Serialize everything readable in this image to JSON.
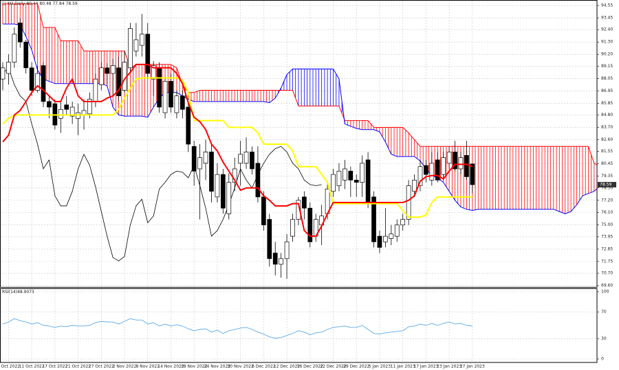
{
  "chart_data": [
    {
      "type": "candlestick",
      "title": "KO,Daily 80.44 80.48 77.84 78.59",
      "categories": [
        null,
        "6 Oct 2022",
        null,
        null,
        null,
        "11 Oct 2022",
        null,
        null,
        null,
        "17 Oct 2022",
        null,
        null,
        null,
        "21 Oct 2022",
        null,
        null,
        null,
        "27 Oct 2022",
        null,
        null,
        null,
        "2 Nov 2022",
        null,
        null,
        null,
        "8 Nov 2022",
        null,
        null,
        null,
        "14 Nov 2022",
        null,
        null,
        null,
        "18 Nov 2022",
        null,
        null,
        null,
        "24 Nov 2022",
        null,
        null,
        null,
        "30 Nov 2022",
        null,
        null,
        null,
        "6 Dec 2022",
        null,
        null,
        null,
        "12 Dec 2022",
        null,
        null,
        null,
        "16 Dec 2022",
        null,
        null,
        null,
        "22 Dec 2022",
        null,
        null,
        null,
        "29 Dec 2022",
        null,
        null,
        null,
        "5 Jan 2023",
        null,
        null,
        null,
        "11 Jan 2023",
        null,
        null,
        null,
        "17 Jan 2023",
        null,
        null,
        null,
        "23 Jan 2023",
        null,
        null,
        null,
        "27 Jan 2023",
        null,
        null,
        null,
        null,
        null,
        null,
        null,
        null,
        null,
        null,
        null,
        null,
        null,
        null,
        null,
        null,
        null,
        null,
        null,
        null,
        null,
        null
      ],
      "open": [
        88,
        88.5,
        89.5,
        93,
        91.3,
        89,
        87,
        89.2,
        86,
        85.8,
        84.5,
        85.7,
        84.7,
        84.5,
        84.8,
        84.9,
        86,
        87.5,
        89,
        88.5,
        89,
        87,
        89,
        90.5,
        91,
        92,
        88,
        89,
        85,
        87.8,
        85,
        86.5,
        85.5,
        82,
        80,
        80.5,
        81.5,
        77.5,
        79.5,
        76,
        78.8,
        80.5,
        80.5,
        81.5,
        80.5,
        77.5,
        75.5,
        72.5,
        71.5,
        72,
        74,
        75.5,
        77.5,
        76.5,
        74,
        75,
        76,
        78,
        78.5,
        79,
        79.8,
        79,
        78.8,
        80.8,
        77.5,
        74,
        73.5,
        73.8,
        74,
        75,
        75.5,
        78,
        78.5,
        80.3,
        79,
        80.8,
        79.5,
        80.5,
        81.5,
        80,
        81.2,
        80.44,
        null,
        null,
        null,
        null,
        null,
        null,
        null,
        null,
        null,
        null,
        null,
        null,
        null,
        null,
        null,
        null,
        null,
        null,
        null,
        null,
        null,
        null
      ],
      "high": [
        89.5,
        90.2,
        92.6,
        93.4,
        91.5,
        89.5,
        89.2,
        89.5,
        86.5,
        86.2,
        86,
        86.5,
        86,
        85.8,
        86.2,
        86.8,
        88.5,
        89.5,
        89.4,
        89.8,
        90,
        90.5,
        93,
        93,
        93.8,
        93,
        89.6,
        89.5,
        88.2,
        88.5,
        87,
        87,
        86,
        82.5,
        82.2,
        82.6,
        82.3,
        80.5,
        80,
        79.6,
        81,
        82.5,
        82.8,
        82,
        82,
        78,
        76,
        73.5,
        72.5,
        74.2,
        76,
        77.5,
        78,
        77,
        76,
        76.8,
        78.8,
        80,
        80.5,
        80.8,
        80.2,
        79.5,
        81.2,
        81.5,
        78,
        74.5,
        76.5,
        75,
        75.5,
        76,
        79,
        79.5,
        80.8,
        80.8,
        81.5,
        81.5,
        81.5,
        82,
        82.5,
        81.5,
        82.5,
        80.48,
        null,
        null,
        null,
        null,
        null,
        null,
        null,
        null,
        null,
        null,
        null,
        null,
        null,
        null,
        null,
        null,
        null,
        null,
        null,
        null,
        null,
        null
      ],
      "low": [
        87,
        87.5,
        89,
        90.8,
        88.5,
        86.5,
        86.8,
        85.5,
        84.5,
        83.5,
        83.2,
        84.8,
        84,
        83,
        83.5,
        84.5,
        85.5,
        87,
        87.5,
        86.5,
        86,
        86.8,
        88.5,
        90,
        90,
        88,
        86.5,
        85,
        84.5,
        85,
        84.5,
        84.5,
        81.5,
        78.5,
        75.5,
        79,
        77,
        77,
        76,
        75.5,
        78,
        78.5,
        80,
        79.5,
        77,
        74.5,
        71.3,
        70.5,
        70.3,
        70.2,
        73.5,
        75,
        75.5,
        73,
        73.5,
        73.2,
        75.5,
        77.5,
        78,
        78.2,
        77.5,
        77.5,
        77.5,
        76.5,
        73,
        72.5,
        73,
        73.2,
        73.5,
        74.5,
        75,
        77.5,
        78,
        78.8,
        78.5,
        78.8,
        79,
        80,
        79.8,
        79.5,
        79,
        77.84,
        null,
        null,
        null,
        null,
        null,
        null,
        null,
        null,
        null,
        null,
        null,
        null,
        null,
        null,
        null,
        null,
        null,
        null,
        null,
        null,
        null,
        null
      ],
      "close": [
        89,
        89.5,
        92,
        91.3,
        89,
        87,
        88.5,
        86,
        85.5,
        83.9,
        85.3,
        85.3,
        85.5,
        85,
        85.2,
        86.2,
        88,
        89,
        88.5,
        89.2,
        86.5,
        89.5,
        92.5,
        91.5,
        92,
        88.5,
        89.2,
        85.5,
        87.8,
        85.5,
        86.5,
        85.3,
        82.2,
        79.8,
        81,
        81.5,
        78,
        79.5,
        76.5,
        78.8,
        80,
        81.3,
        81.5,
        80,
        77.5,
        75,
        72,
        71.5,
        72,
        73.5,
        75.5,
        77.2,
        76.5,
        73.5,
        75.5,
        75.8,
        78.2,
        79.5,
        79.8,
        80,
        79,
        78.8,
        80.5,
        77,
        73.5,
        73,
        74,
        74.2,
        75,
        75.5,
        78.5,
        79,
        80.2,
        79.5,
        80.5,
        79,
        81,
        81.5,
        80,
        81,
        79.3,
        78.59,
        null,
        null,
        null,
        null,
        null,
        null,
        null,
        null,
        null,
        null,
        null,
        null,
        null,
        null,
        null,
        null,
        null,
        null,
        null,
        null,
        null,
        null
      ],
      "up_color": "#ffffff",
      "down_color": "#000000",
      "span_a": {
        "color": "#ff0000",
        "values": [
          94.7,
          94.7,
          94.7,
          94.7,
          94.7,
          94.7,
          94.7,
          92.6,
          92.6,
          92.6,
          91.4,
          91.4,
          91.4,
          91.4,
          90.5,
          90.5,
          90.5,
          90.5,
          90.5,
          90.5,
          90.5,
          90.5,
          89,
          89.3,
          89.3,
          89.3,
          89.3,
          89.3,
          89.3,
          89.3,
          89,
          87.5,
          86.8,
          86.8,
          87,
          87,
          87,
          87,
          87,
          87,
          87,
          87,
          87,
          87,
          87,
          87,
          87,
          87,
          87,
          87,
          87,
          85.6,
          85.6,
          85.6,
          85.6,
          85.6,
          85.6,
          85.6,
          85.6,
          84.3,
          84.3,
          84.3,
          84.3,
          84.3,
          83.7,
          83.7,
          83.7,
          83.7,
          83.7,
          83.7,
          83.2,
          82.6,
          82,
          82,
          82,
          82,
          82,
          82,
          82,
          82,
          82,
          82,
          82,
          82,
          82,
          82,
          82,
          82,
          82,
          82,
          82,
          82,
          82,
          82,
          82,
          82,
          82,
          82,
          82,
          82,
          82,
          82,
          80.5,
          80.2
        ]
      },
      "span_b": {
        "color": "#0000ff",
        "values": [
          92.9,
          92.9,
          92.9,
          92.8,
          91.8,
          90.6,
          88.8,
          88,
          87.8,
          87.6,
          87.6,
          87.6,
          87.6,
          87.6,
          87.6,
          87.6,
          87.6,
          87.6,
          87.4,
          85.5,
          84.8,
          84.7,
          84.7,
          84.7,
          84.7,
          84.6,
          85.5,
          86.3,
          86.8,
          86.8,
          86.8,
          86.5,
          86.2,
          86,
          86,
          86,
          86,
          86,
          86,
          86,
          86,
          86,
          86,
          86,
          86,
          86,
          85.9,
          86.3,
          87.2,
          88.4,
          88.9,
          88.9,
          88.9,
          88.9,
          88.9,
          88.9,
          88.9,
          88.9,
          88,
          84,
          83.8,
          83.6,
          83.5,
          83.5,
          83.5,
          83.3,
          82.4,
          81.3,
          81.1,
          81.1,
          81.1,
          81.1,
          80.7,
          80,
          79.4,
          79.2,
          78.8,
          78,
          77.2,
          76.6,
          76.4,
          76.3,
          76.4,
          76.4,
          76.4,
          76.4,
          76.4,
          76.4,
          76.4,
          76.4,
          76.4,
          76.4,
          76.4,
          76.4,
          76.4,
          76.4,
          76.2,
          76,
          76.2,
          76.8,
          77.6,
          77.8,
          78,
          78.5
        ]
      },
      "chikou": {
        "color": "#000000",
        "values": [
          88.5,
          89,
          87.5,
          86.5,
          86,
          84,
          82.2,
          80,
          80.8,
          77.6,
          76.7,
          76.7,
          78,
          80,
          81.3,
          80.3,
          78.4,
          76.2,
          74,
          72.1,
          71.8,
          72.2,
          75,
          76.7,
          77.3,
          75.2,
          75.8,
          78.2,
          78.8,
          79.5,
          79.8,
          79.7,
          79.2,
          80.3,
          78.5,
          76.5,
          74,
          74.5,
          75.5,
          76.8,
          78.3,
          80,
          79,
          78.3,
          79.5,
          80.5,
          81.3,
          81.8,
          82,
          81.5,
          80.5,
          80,
          79,
          78.6,
          78.5,
          78.59,
          null,
          null,
          null,
          null,
          null,
          null,
          null,
          null,
          null,
          null,
          null,
          null,
          null,
          null,
          null,
          null,
          null,
          null,
          null,
          null,
          null,
          null,
          null,
          null,
          null,
          null,
          null,
          null,
          null,
          null,
          null,
          null,
          null,
          null,
          null,
          null,
          null,
          null,
          null,
          null,
          null,
          null,
          null,
          null,
          null,
          null,
          null,
          null
        ]
      },
      "tenkan": {
        "color": "#ff0000",
        "values": [
          82.4,
          83,
          84.8,
          85.2,
          86,
          86.8,
          87.4,
          87,
          86.5,
          86,
          86,
          87.2,
          88,
          86.5,
          86,
          86,
          86,
          86,
          86.3,
          86.5,
          87,
          88,
          88.6,
          89.3,
          89.3,
          89.3,
          89,
          89,
          89,
          89,
          88.5,
          87.6,
          85.9,
          84.6,
          84.2,
          83.5,
          82.2,
          81.6,
          80.6,
          79.8,
          79,
          78.1,
          78.3,
          78.3,
          78.3,
          77.6,
          77.2,
          76.7,
          76.7,
          76.7,
          76.9,
          76.9,
          74.5,
          74,
          74,
          74.9,
          76,
          77,
          77,
          77,
          77,
          77,
          77,
          77,
          77,
          77,
          77,
          77,
          77,
          77,
          77.2,
          77.6,
          78.9,
          79.3,
          79.4,
          79.4,
          79.1,
          79.8,
          80.4,
          80.4,
          80.4,
          80.2,
          null,
          null,
          null,
          null,
          null,
          null,
          null,
          null,
          null,
          null,
          null,
          null,
          null,
          null,
          null,
          null,
          null,
          null,
          null,
          null,
          null,
          null
        ]
      },
      "kijun": {
        "color": "#ffff00",
        "values": [
          84,
          84.5,
          84.8,
          84.8,
          84.8,
          84.8,
          84.8,
          84.8,
          84.8,
          84.8,
          84.8,
          84.8,
          84.8,
          84.8,
          84.8,
          84.8,
          84.8,
          84.8,
          84.8,
          84.8,
          85.3,
          86.3,
          87.2,
          88,
          88.1,
          88.1,
          88.1,
          88.1,
          88.1,
          88.1,
          88.1,
          87.9,
          86.8,
          84.3,
          84.3,
          84.3,
          84.3,
          84.3,
          84.3,
          83.7,
          83.7,
          83.7,
          83.7,
          83.7,
          83.2,
          82.2,
          82.2,
          82.2,
          82.2,
          82.2,
          81.6,
          80.2,
          80.2,
          80.2,
          80.2,
          79.5,
          78.8,
          76.9,
          76.9,
          76.9,
          76.9,
          76.9,
          76.9,
          76.9,
          76.9,
          76.9,
          76.9,
          76.9,
          76.9,
          76.3,
          75.7,
          75.7,
          75.7,
          75.9,
          77,
          77.5,
          77.5,
          77.5,
          77.5,
          77.5,
          77.5,
          77.5,
          null,
          null,
          null,
          null,
          null,
          null,
          null,
          null,
          null,
          null,
          null,
          null,
          null,
          null,
          null,
          null,
          null,
          null,
          null,
          null,
          null,
          null
        ]
      },
      "ylim": [
        69.48,
        94.92
      ],
      "yticks": [
        94.55,
        93.45,
        {
          "value": 92.4,
          "label": "92.40"
        },
        {
          "value": 91.3,
          "label": "91.30"
        },
        {
          "value": 90.2,
          "label": "90.20"
        },
        89.15,
        88.05,
        86.95,
        85.85,
        {
          "value": 84.8,
          "label": "84.80"
        },
        {
          "value": 83.7,
          "label": "83.70"
        },
        {
          "value": 82.6,
          "label": "82.60"
        },
        81.55,
        80.45,
        79.35,
        {
          "value": 78.3,
          "label": "78.30"
        },
        {
          "value": 77.2,
          "label": "77.20"
        },
        {
          "value": 76.1,
          "label": "76.10"
        },
        {
          "value": 75,
          "label": "75.00"
        },
        73.95,
        72.85,
        71.75,
        {
          "value": 70.7,
          "label": "70.70"
        },
        {
          "value": 69.6,
          "label": "69.60"
        }
      ],
      "grid": true
    },
    {
      "type": "line",
      "title": "RSI(14)",
      "color": "#5aa9e6",
      "values": [
        52,
        55,
        60,
        57,
        55,
        52,
        54,
        50,
        49,
        47,
        49,
        48,
        50,
        49,
        49,
        50,
        54,
        56,
        55,
        55,
        52,
        56,
        60,
        58,
        58,
        52,
        54,
        49,
        52,
        49,
        51,
        49,
        45,
        42,
        44,
        45,
        40,
        43,
        38,
        42,
        44,
        46,
        47,
        44,
        40,
        37,
        33,
        31,
        32,
        35,
        38,
        42,
        40,
        36,
        39,
        40,
        44,
        47,
        48,
        49,
        47,
        47,
        50,
        44,
        38,
        37,
        39,
        40,
        41,
        42,
        48,
        49,
        52,
        50,
        53,
        50,
        53,
        55,
        52,
        53,
        50,
        48.9073,
        null,
        null,
        null,
        null,
        null,
        null,
        null,
        null,
        null,
        null,
        null,
        null,
        null,
        null,
        null,
        null,
        null,
        null,
        null,
        null,
        null,
        null
      ],
      "ylim": [
        0,
        100
      ],
      "yticks": [
        0,
        30,
        70,
        100
      ],
      "grid": true
    }
  ]
}
